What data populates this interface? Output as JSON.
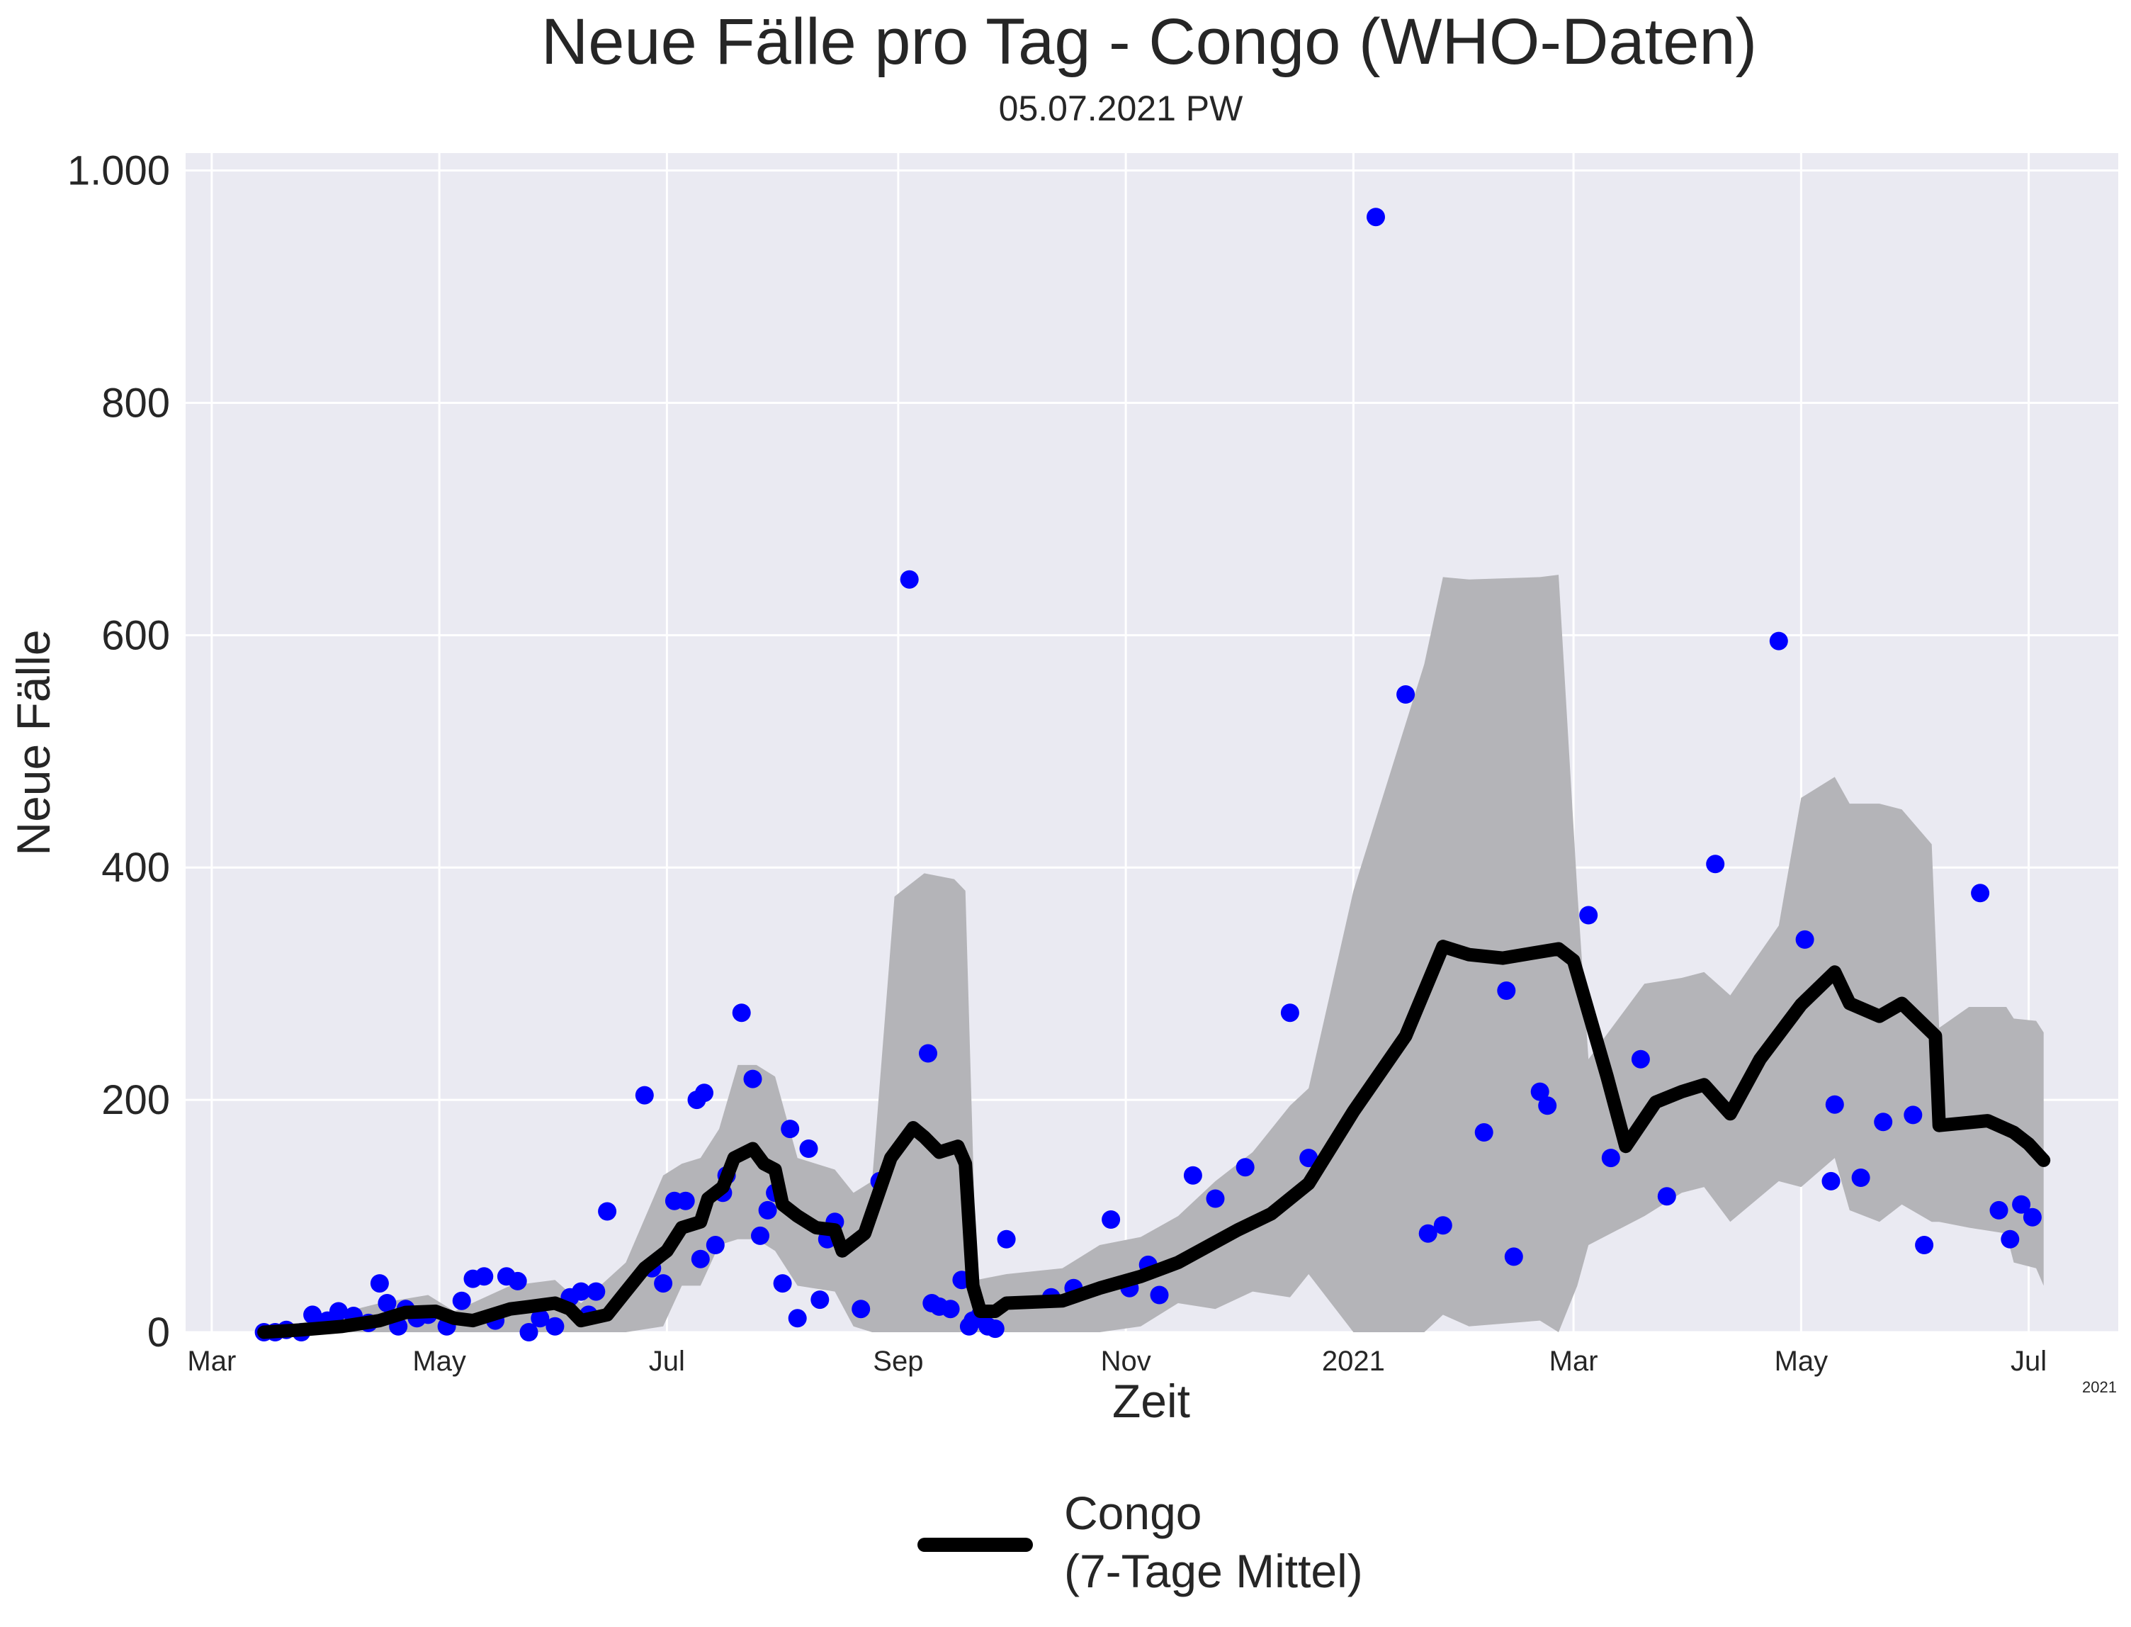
{
  "chart_data": {
    "type": "line",
    "title": "Neue Fälle pro Tag - Congo (WHO-Daten)",
    "subtitle": "05.07.2021 PW",
    "xlabel": "Zeit",
    "ylabel": "Neue Fälle",
    "x_offset_label": "2021",
    "xlim": [
      "2020-02-23",
      "2021-07-25"
    ],
    "ylim": [
      0,
      1015
    ],
    "grid": true,
    "legend_position": "bottom-center",
    "y_ticks": [
      {
        "value": 0,
        "label": "0"
      },
      {
        "value": 200,
        "label": "200"
      },
      {
        "value": 400,
        "label": "400"
      },
      {
        "value": 600,
        "label": "600"
      },
      {
        "value": 800,
        "label": "800"
      },
      {
        "value": 1000,
        "label": "1.000"
      }
    ],
    "x_ticks": [
      {
        "date": "2020-03-01",
        "label": "Mar"
      },
      {
        "date": "2020-05-01",
        "label": "May"
      },
      {
        "date": "2020-07-01",
        "label": "Jul"
      },
      {
        "date": "2020-09-01",
        "label": "Sep"
      },
      {
        "date": "2020-11-01",
        "label": "Nov"
      },
      {
        "date": "2021-01-01",
        "label": "2021"
      },
      {
        "date": "2021-03-01",
        "label": "Mar"
      },
      {
        "date": "2021-05-01",
        "label": "May"
      },
      {
        "date": "2021-07-01",
        "label": "Jul"
      }
    ],
    "colors": {
      "points": "#0000ff",
      "line": "#000000",
      "band": "#b4b4b8",
      "plot_bg": "#eaeaf2",
      "grid": "#ffffff"
    },
    "series": [
      {
        "name": "Congo\n(7-Tage Mittel)",
        "legend_lines": [
          "Congo",
          "(7-Tage Mittel)"
        ],
        "type": "line",
        "points": [
          [
            "2020-03-15",
            0
          ],
          [
            "2020-03-25",
            2
          ],
          [
            "2020-04-05",
            5
          ],
          [
            "2020-04-15",
            10
          ],
          [
            "2020-04-22",
            17
          ],
          [
            "2020-04-30",
            18
          ],
          [
            "2020-05-05",
            12
          ],
          [
            "2020-05-10",
            10
          ],
          [
            "2020-05-15",
            15
          ],
          [
            "2020-05-20",
            20
          ],
          [
            "2020-05-25",
            22
          ],
          [
            "2020-06-01",
            25
          ],
          [
            "2020-06-05",
            20
          ],
          [
            "2020-06-08",
            10
          ],
          [
            "2020-06-15",
            15
          ],
          [
            "2020-06-20",
            35
          ],
          [
            "2020-06-25",
            55
          ],
          [
            "2020-07-01",
            70
          ],
          [
            "2020-07-05",
            90
          ],
          [
            "2020-07-10",
            95
          ],
          [
            "2020-07-12",
            115
          ],
          [
            "2020-07-16",
            125
          ],
          [
            "2020-07-19",
            150
          ],
          [
            "2020-07-24",
            158
          ],
          [
            "2020-07-27",
            145
          ],
          [
            "2020-07-30",
            140
          ],
          [
            "2020-08-01",
            110
          ],
          [
            "2020-08-05",
            100
          ],
          [
            "2020-08-10",
            90
          ],
          [
            "2020-08-15",
            88
          ],
          [
            "2020-08-17",
            70
          ],
          [
            "2020-08-23",
            85
          ],
          [
            "2020-08-30",
            150
          ],
          [
            "2020-09-05",
            176
          ],
          [
            "2020-09-08",
            168
          ],
          [
            "2020-09-12",
            155
          ],
          [
            "2020-09-17",
            160
          ],
          [
            "2020-09-19",
            145
          ],
          [
            "2020-09-21",
            40
          ],
          [
            "2020-09-23",
            18
          ],
          [
            "2020-09-27",
            18
          ],
          [
            "2020-09-30",
            25
          ],
          [
            "2020-10-15",
            27
          ],
          [
            "2020-10-25",
            38
          ],
          [
            "2020-11-05",
            48
          ],
          [
            "2020-11-15",
            60
          ],
          [
            "2020-12-01",
            88
          ],
          [
            "2020-12-10",
            102
          ],
          [
            "2020-12-20",
            128
          ],
          [
            "2021-01-01",
            190
          ],
          [
            "2021-01-15",
            255
          ],
          [
            "2021-01-25",
            332
          ],
          [
            "2021-02-01",
            325
          ],
          [
            "2021-02-10",
            322
          ],
          [
            "2021-02-25",
            330
          ],
          [
            "2021-03-01",
            320
          ],
          [
            "2021-03-10",
            220
          ],
          [
            "2021-03-15",
            160
          ],
          [
            "2021-03-23",
            198
          ],
          [
            "2021-03-30",
            207
          ],
          [
            "2021-04-05",
            213
          ],
          [
            "2021-04-12",
            188
          ],
          [
            "2021-04-20",
            235
          ],
          [
            "2021-05-01",
            282
          ],
          [
            "2021-05-10",
            310
          ],
          [
            "2021-05-14",
            283
          ],
          [
            "2021-05-22",
            272
          ],
          [
            "2021-05-28",
            283
          ],
          [
            "2021-06-06",
            255
          ],
          [
            "2021-06-07",
            178
          ],
          [
            "2021-06-20",
            182
          ],
          [
            "2021-06-27",
            172
          ],
          [
            "2021-07-01",
            162
          ],
          [
            "2021-07-05",
            148
          ]
        ]
      }
    ],
    "band": [
      [
        "2020-03-15",
        0,
        0
      ],
      [
        "2020-04-15",
        0,
        25
      ],
      [
        "2020-04-28",
        0,
        32
      ],
      [
        "2020-05-05",
        0,
        18
      ],
      [
        "2020-05-20",
        0,
        40
      ],
      [
        "2020-06-01",
        0,
        45
      ],
      [
        "2020-06-08",
        0,
        25
      ],
      [
        "2020-06-20",
        0,
        60
      ],
      [
        "2020-06-30",
        5,
        135
      ],
      [
        "2020-07-05",
        40,
        145
      ],
      [
        "2020-07-10",
        40,
        150
      ],
      [
        "2020-07-15",
        75,
        175
      ],
      [
        "2020-07-20",
        80,
        230
      ],
      [
        "2020-07-25",
        80,
        230
      ],
      [
        "2020-07-30",
        70,
        220
      ],
      [
        "2020-08-05",
        40,
        150
      ],
      [
        "2020-08-15",
        35,
        140
      ],
      [
        "2020-08-20",
        5,
        120
      ],
      [
        "2020-08-25",
        0,
        130
      ],
      [
        "2020-08-31",
        0,
        375
      ],
      [
        "2020-09-08",
        0,
        395
      ],
      [
        "2020-09-16",
        0,
        390
      ],
      [
        "2020-09-19",
        0,
        380
      ],
      [
        "2020-09-22",
        0,
        45
      ],
      [
        "2020-09-30",
        0,
        50
      ],
      [
        "2020-10-15",
        0,
        55
      ],
      [
        "2020-10-25",
        0,
        75
      ],
      [
        "2020-11-05",
        5,
        82
      ],
      [
        "2020-11-15",
        25,
        100
      ],
      [
        "2020-11-25",
        20,
        130
      ],
      [
        "2020-12-05",
        35,
        155
      ],
      [
        "2020-12-15",
        30,
        195
      ],
      [
        "2020-12-20",
        50,
        210
      ],
      [
        "2021-01-01",
        0,
        380
      ],
      [
        "2021-01-20",
        0,
        575
      ],
      [
        "2021-01-25",
        15,
        650
      ],
      [
        "2021-02-01",
        5,
        648
      ],
      [
        "2021-02-20",
        10,
        650
      ],
      [
        "2021-02-25",
        0,
        652
      ],
      [
        "2021-03-02",
        40,
        380
      ],
      [
        "2021-03-05",
        75,
        235
      ],
      [
        "2021-03-20",
        100,
        300
      ],
      [
        "2021-03-30",
        120,
        305
      ],
      [
        "2021-04-05",
        125,
        310
      ],
      [
        "2021-04-12",
        95,
        290
      ],
      [
        "2021-04-25",
        130,
        350
      ],
      [
        "2021-05-01",
        125,
        460
      ],
      [
        "2021-05-10",
        150,
        478
      ],
      [
        "2021-05-14",
        105,
        455
      ],
      [
        "2021-05-22",
        95,
        455
      ],
      [
        "2021-05-28",
        110,
        450
      ],
      [
        "2021-06-05",
        95,
        420
      ],
      [
        "2021-06-07",
        95,
        262
      ],
      [
        "2021-06-15",
        90,
        280
      ],
      [
        "2021-06-25",
        85,
        280
      ],
      [
        "2021-06-27",
        60,
        270
      ],
      [
        "2021-07-03",
        55,
        268
      ],
      [
        "2021-07-05",
        40,
        258
      ]
    ],
    "scatter_points": [
      [
        "2020-03-15",
        0
      ],
      [
        "2020-03-18",
        0
      ],
      [
        "2020-03-21",
        2
      ],
      [
        "2020-03-25",
        0
      ],
      [
        "2020-03-28",
        15
      ],
      [
        "2020-04-01",
        10
      ],
      [
        "2020-04-04",
        18
      ],
      [
        "2020-04-08",
        14
      ],
      [
        "2020-04-12",
        8
      ],
      [
        "2020-04-15",
        42
      ],
      [
        "2020-04-17",
        25
      ],
      [
        "2020-04-20",
        5
      ],
      [
        "2020-04-22",
        20
      ],
      [
        "2020-04-25",
        12
      ],
      [
        "2020-04-28",
        15
      ],
      [
        "2020-05-03",
        5
      ],
      [
        "2020-05-07",
        27
      ],
      [
        "2020-05-10",
        46
      ],
      [
        "2020-05-13",
        48
      ],
      [
        "2020-05-16",
        10
      ],
      [
        "2020-05-19",
        48
      ],
      [
        "2020-05-22",
        44
      ],
      [
        "2020-05-25",
        0
      ],
      [
        "2020-05-28",
        12
      ],
      [
        "2020-06-01",
        5
      ],
      [
        "2020-06-05",
        30
      ],
      [
        "2020-06-08",
        35
      ],
      [
        "2020-06-10",
        15
      ],
      [
        "2020-06-12",
        35
      ],
      [
        "2020-06-15",
        104
      ],
      [
        "2020-06-25",
        204
      ],
      [
        "2020-06-27",
        55
      ],
      [
        "2020-06-30",
        42
      ],
      [
        "2020-07-03",
        113
      ],
      [
        "2020-07-06",
        113
      ],
      [
        "2020-07-09",
        200
      ],
      [
        "2020-07-10",
        63
      ],
      [
        "2020-07-11",
        206
      ],
      [
        "2020-07-14",
        75
      ],
      [
        "2020-07-16",
        120
      ],
      [
        "2020-07-17",
        135
      ],
      [
        "2020-07-21",
        275
      ],
      [
        "2020-07-24",
        218
      ],
      [
        "2020-07-26",
        83
      ],
      [
        "2020-07-28",
        105
      ],
      [
        "2020-07-30",
        120
      ],
      [
        "2020-08-01",
        42
      ],
      [
        "2020-08-03",
        175
      ],
      [
        "2020-08-05",
        12
      ],
      [
        "2020-08-08",
        158
      ],
      [
        "2020-08-11",
        28
      ],
      [
        "2020-08-13",
        80
      ],
      [
        "2020-08-15",
        95
      ],
      [
        "2020-08-22",
        20
      ],
      [
        "2020-08-27",
        130
      ],
      [
        "2020-09-04",
        648
      ],
      [
        "2020-09-09",
        240
      ],
      [
        "2020-09-10",
        25
      ],
      [
        "2020-09-12",
        22
      ],
      [
        "2020-09-15",
        20
      ],
      [
        "2020-09-18",
        45
      ],
      [
        "2020-09-20",
        5
      ],
      [
        "2020-09-21",
        10
      ],
      [
        "2020-09-23",
        15
      ],
      [
        "2020-09-25",
        5
      ],
      [
        "2020-09-27",
        3
      ],
      [
        "2020-09-30",
        80
      ],
      [
        "2020-10-12",
        30
      ],
      [
        "2020-10-18",
        38
      ],
      [
        "2020-10-28",
        97
      ],
      [
        "2020-11-02",
        38
      ],
      [
        "2020-11-07",
        58
      ],
      [
        "2020-11-10",
        32
      ],
      [
        "2020-11-19",
        135
      ],
      [
        "2020-11-25",
        115
      ],
      [
        "2020-12-03",
        142
      ],
      [
        "2020-12-15",
        275
      ],
      [
        "2020-12-20",
        150
      ],
      [
        "2021-01-07",
        960
      ],
      [
        "2021-01-15",
        549
      ],
      [
        "2021-01-21",
        85
      ],
      [
        "2021-01-25",
        92
      ],
      [
        "2021-02-05",
        172
      ],
      [
        "2021-02-11",
        294
      ],
      [
        "2021-02-13",
        65
      ],
      [
        "2021-02-20",
        207
      ],
      [
        "2021-02-22",
        195
      ],
      [
        "2021-03-05",
        359
      ],
      [
        "2021-03-11",
        150
      ],
      [
        "2021-03-19",
        235
      ],
      [
        "2021-03-26",
        117
      ],
      [
        "2021-04-08",
        403
      ],
      [
        "2021-04-25",
        595
      ],
      [
        "2021-05-02",
        338
      ],
      [
        "2021-05-09",
        130
      ],
      [
        "2021-05-10",
        196
      ],
      [
        "2021-05-17",
        133
      ],
      [
        "2021-05-23",
        181
      ],
      [
        "2021-05-31",
        187
      ],
      [
        "2021-06-03",
        75
      ],
      [
        "2021-06-18",
        378
      ],
      [
        "2021-06-23",
        105
      ],
      [
        "2021-06-26",
        80
      ],
      [
        "2021-06-29",
        110
      ],
      [
        "2021-07-02",
        99
      ]
    ]
  }
}
